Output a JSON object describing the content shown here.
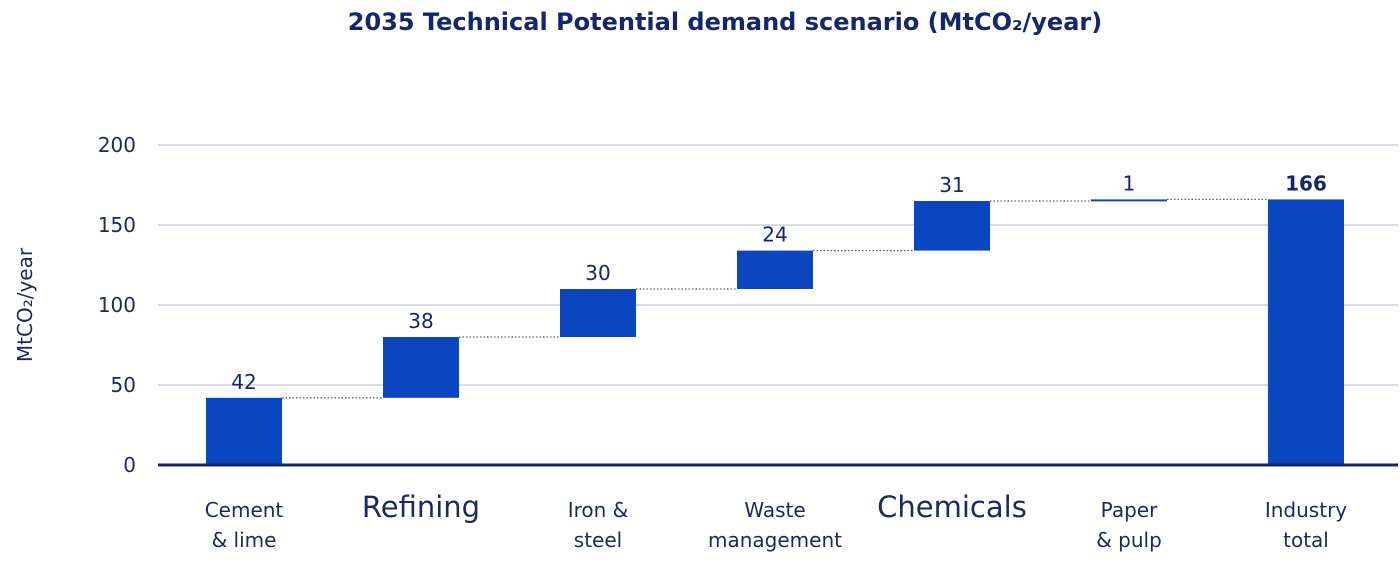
{
  "chart_data": {
    "type": "bar",
    "subtype": "waterfall",
    "title": "2035 Technical Potential demand scenario (MtCO₂/year)",
    "ylabel": "MtCO₂/year",
    "xlabel": "",
    "ylim": [
      0,
      200
    ],
    "yticks": [
      0,
      50,
      100,
      150,
      200
    ],
    "grid": true,
    "categories": [
      [
        "Cement",
        "& lime"
      ],
      [
        "Refining"
      ],
      [
        "Iron &",
        "steel"
      ],
      [
        "Waste",
        "management"
      ],
      [
        "Chemicals"
      ],
      [
        "Paper",
        "& pulp"
      ],
      [
        "Industry",
        "total"
      ]
    ],
    "values": [
      42,
      38,
      30,
      24,
      31,
      1,
      166
    ],
    "labels": [
      "42",
      "38",
      "30",
      "24",
      "31",
      "1",
      "166"
    ],
    "is_total": [
      false,
      false,
      false,
      false,
      false,
      false,
      true
    ],
    "emphasized_categories": [
      1,
      4
    ],
    "colors": {
      "bar": "#0a46c0",
      "axis": "#14276b",
      "grid": "#c8d0e0",
      "connector": "#555f7a"
    }
  }
}
